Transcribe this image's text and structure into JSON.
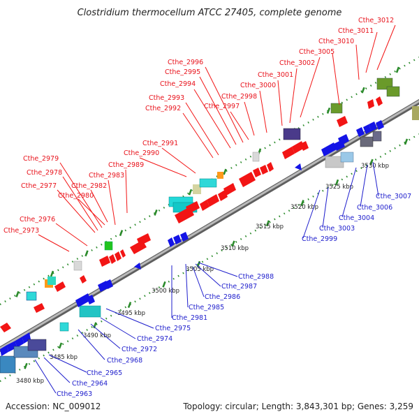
{
  "title": "Clostridium thermocellum ATCC 27405, complete genome",
  "footer": {
    "accession": "Accession: NC_009012",
    "summary": "Topology: circular; Length: 3,843,301 bp; Genes: 3,259"
  },
  "colors": {
    "forward_label": "#e8121b",
    "reverse_label": "#1d1dcc",
    "forward_gene": "#f21515",
    "reverse_gene": "#1414e6",
    "tick_green": "#2a8a2a",
    "backbone": "#8a8a8a"
  },
  "ticks": [
    {
      "label": "3480 kbp"
    },
    {
      "label": "3485 kbp"
    },
    {
      "label": "3490 kbp"
    },
    {
      "label": "3495 kbp"
    },
    {
      "label": "3500 kbp"
    },
    {
      "label": "3505 kbp"
    },
    {
      "label": "3510 kbp"
    },
    {
      "label": "3515 kbp"
    },
    {
      "label": "3520 kbp"
    },
    {
      "label": "3525 kbp"
    },
    {
      "label": "3530 kbp"
    }
  ],
  "forward_labels": [
    "Cthe_2973",
    "Cthe_2976",
    "Cthe_2977",
    "Cthe_2978",
    "Cthe_2979",
    "Cthe_2980",
    "Cthe_2982",
    "Cthe_2983",
    "Cthe_2989",
    "Cthe_2990",
    "Cthe_2991",
    "Cthe_2992",
    "Cthe_2993",
    "Cthe_2994",
    "Cthe_2995",
    "Cthe_2996",
    "Cthe_2997",
    "Cthe_2998",
    "Cthe_3000",
    "Cthe_3001",
    "Cthe_3002",
    "Cthe_3005",
    "Cthe_3010",
    "Cthe_3011",
    "Cthe_3012"
  ],
  "reverse_labels": [
    "Cthe_2963",
    "Cthe_2964",
    "Cthe_2965",
    "Cthe_2968",
    "Cthe_2972",
    "Cthe_2974",
    "Cthe_2975",
    "Cthe_2981",
    "Cthe_2985",
    "Cthe_2986",
    "Cthe_2987",
    "Cthe_2988",
    "Cthe_2999",
    "Cthe_3003",
    "Cthe_3004",
    "Cthe_3006",
    "Cthe_3007"
  ]
}
